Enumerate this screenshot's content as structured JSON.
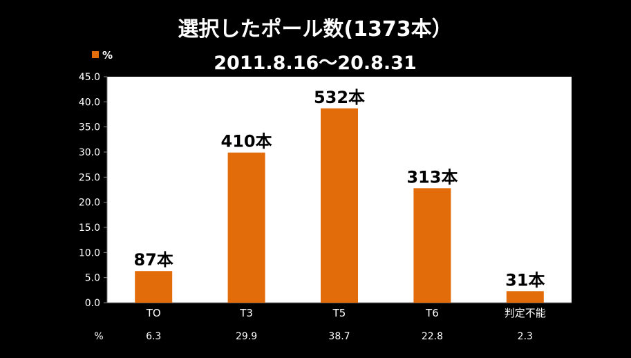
{
  "chart_data": {
    "type": "bar",
    "title": "選択したポール数(1373本）",
    "subtitle": "2011.8.16～20.8.31",
    "categories": [
      "TO",
      "T3",
      "T5",
      "T6",
      "判定不能"
    ],
    "series": [
      {
        "name": "%",
        "values": [
          6.3,
          29.9,
          38.7,
          22.8,
          2.3
        ],
        "color": "#E36C0A"
      }
    ],
    "data_labels": [
      "87本",
      "410本",
      "532本",
      "313本",
      "31本"
    ],
    "table_row_label": "%",
    "table_values": [
      "6.3",
      "29.9",
      "38.7",
      "22.8",
      "2.3"
    ],
    "y_ticks": [
      "0.0",
      "5.0",
      "10.0",
      "15.0",
      "20.0",
      "25.0",
      "30.0",
      "35.0",
      "40.0",
      "45.0"
    ],
    "ylim": [
      0,
      45
    ],
    "grid": false,
    "legend_position": "top-left",
    "plot_background": "#FFFFFF",
    "page_background": "#000000"
  }
}
